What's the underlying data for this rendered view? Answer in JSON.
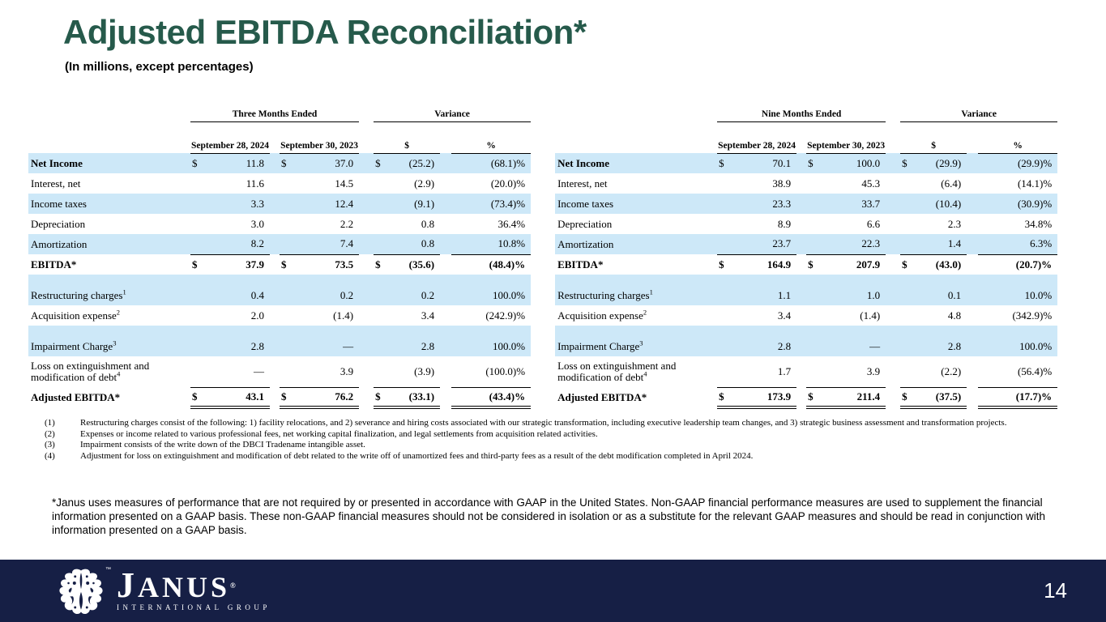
{
  "slide": {
    "title": "Adjusted EBITDA Reconciliation*",
    "subtitle": "(In millions, except percentages)",
    "page_number": "14"
  },
  "colors": {
    "title_green": "#265a4b",
    "row_highlight_blue": "#cde8f8",
    "footer_navy": "#161f45"
  },
  "tables": [
    {
      "period_header": "Three Months Ended",
      "variance_header": "Variance",
      "col_date_1": "September 28, 2024",
      "col_date_2": "September 30, 2023",
      "col_dollar": "$",
      "col_percent": "%",
      "rows": [
        {
          "label": "Net Income",
          "d1": "$",
          "v1": "11.8",
          "d2": "$",
          "v2": "37.0",
          "d3": "$",
          "v3": "(25.2)",
          "v4": "(68.1)%",
          "cls": "blue lblbold"
        },
        {
          "label": "Interest, net",
          "v1": "11.6",
          "v2": "14.5",
          "v3": "(2.9)",
          "v4": "(20.0)%",
          "cls": ""
        },
        {
          "label": "Income taxes",
          "v1": "3.3",
          "v2": "12.4",
          "v3": "(9.1)",
          "v4": "(73.4)%",
          "cls": "blue"
        },
        {
          "label": "Depreciation",
          "v1": "3.0",
          "v2": "2.2",
          "v3": "0.8",
          "v4": "36.4%",
          "cls": ""
        },
        {
          "label": "Amortization",
          "v1": "8.2",
          "v2": "7.4",
          "v3": "0.8",
          "v4": "10.8%",
          "cls": "blue rule"
        },
        {
          "label": "EBITDA*",
          "d1": "$",
          "v1": "37.9",
          "d2": "$",
          "v2": "73.5",
          "d3": "$",
          "v3": "(35.6)",
          "v4": "(48.4)%",
          "cls": "bold"
        },
        {
          "spacer": true,
          "cls": "sp blue"
        },
        {
          "label": "Restructuring charges",
          "sup": "1",
          "v1": "0.4",
          "v2": "0.2",
          "v3": "0.2",
          "v4": "100.0%",
          "cls": "blue"
        },
        {
          "label": "Acquisition expense",
          "sup": "2",
          "v1": "2.0",
          "v2": "(1.4)",
          "v3": "3.4",
          "v4": "(242.9)%",
          "cls": ""
        },
        {
          "spacer": true,
          "cls": "sp blue"
        },
        {
          "label": "Impairment Charge",
          "sup": "3",
          "v1": "2.8",
          "v2": "—",
          "v3": "2.8",
          "v4": "100.0%",
          "cls": "blue"
        },
        {
          "label": "Loss on extinguishment and modification of debt",
          "sup": "4",
          "v1": "—",
          "v2": "3.9",
          "v3": "(3.9)",
          "v4": "(100.0)%",
          "cls": "tall rule"
        },
        {
          "label": "Adjusted EBITDA*",
          "d1": "$",
          "v1": "43.1",
          "d2": "$",
          "v2": "76.2",
          "d3": "$",
          "v3": "(33.1)",
          "v4": "(43.4)%",
          "cls": "bold dbl"
        }
      ]
    },
    {
      "period_header": "Nine Months Ended",
      "variance_header": "Variance",
      "col_date_1": "September 28, 2024",
      "col_date_2": "September 30, 2023",
      "col_dollar": "$",
      "col_percent": "%",
      "rows": [
        {
          "label": "Net Income",
          "d1": "$",
          "v1": "70.1",
          "d2": "$",
          "v2": "100.0",
          "d3": "$",
          "v3": "(29.9)",
          "v4": "(29.9)%",
          "cls": "blue lblbold"
        },
        {
          "label": "Interest, net",
          "v1": "38.9",
          "v2": "45.3",
          "v3": "(6.4)",
          "v4": "(14.1)%",
          "cls": ""
        },
        {
          "label": "Income taxes",
          "v1": "23.3",
          "v2": "33.7",
          "v3": "(10.4)",
          "v4": "(30.9)%",
          "cls": "blue"
        },
        {
          "label": "Depreciation",
          "v1": "8.9",
          "v2": "6.6",
          "v3": "2.3",
          "v4": "34.8%",
          "cls": ""
        },
        {
          "label": "Amortization",
          "v1": "23.7",
          "v2": "22.3",
          "v3": "1.4",
          "v4": "6.3%",
          "cls": "blue rule"
        },
        {
          "label": "EBITDA*",
          "d1": "$",
          "v1": "164.9",
          "d2": "$",
          "v2": "207.9",
          "d3": "$",
          "v3": "(43.0)",
          "v4": "(20.7)%",
          "cls": "bold"
        },
        {
          "spacer": true,
          "cls": "sp blue"
        },
        {
          "label": "Restructuring charges",
          "sup": "1",
          "v1": "1.1",
          "v2": "1.0",
          "v3": "0.1",
          "v4": "10.0%",
          "cls": "blue"
        },
        {
          "label": "Acquisition expense",
          "sup": "2",
          "v1": "3.4",
          "v2": "(1.4)",
          "v3": "4.8",
          "v4": "(342.9)%",
          "cls": ""
        },
        {
          "spacer": true,
          "cls": "sp blue"
        },
        {
          "label": "Impairment Charge",
          "sup": "3",
          "v1": "2.8",
          "v2": "—",
          "v3": "2.8",
          "v4": "100.0%",
          "cls": "blue"
        },
        {
          "label": "Loss on extinguishment and modification of debt",
          "sup": "4",
          "v1": "1.7",
          "v2": "3.9",
          "v3": "(2.2)",
          "v4": "(56.4)%",
          "cls": "tall rule"
        },
        {
          "label": "Adjusted EBITDA*",
          "d1": "$",
          "v1": "173.9",
          "d2": "$",
          "v2": "211.4",
          "d3": "$",
          "v3": "(37.5)",
          "v4": "(17.7)%",
          "cls": "bold dbl"
        }
      ]
    }
  ],
  "footnotes": [
    {
      "num": "(1)",
      "text": "Restructuring charges consist of the following: 1) facility relocations, and 2) severance and hiring costs associated with our strategic transformation, including executive leadership team changes, and 3) strategic business assessment and transformation projects."
    },
    {
      "num": "(2)",
      "text": "Expenses or income related to various professional fees, net working capital finalization, and legal settlements from acquisition related activities."
    },
    {
      "num": "(3)",
      "text": "Impairment consists of the write down of the DBCI Tradename intangible asset."
    },
    {
      "num": "(4)",
      "text": "Adjustment for loss on extinguishment and modification of debt related to the write off of unamortized fees and third-party fees as a result of the debt modification completed in April 2024."
    }
  ],
  "disclaimer": "*Janus uses measures of performance that are not required by or presented in accordance with GAAP in the United States. Non-GAAP financial performance measures are used to supplement the financial information presented on a GAAP basis. These non-GAAP financial measures should not be considered in isolation or as a substitute for the relevant GAAP measures and should be read in conjunction with information presented on a GAAP basis.",
  "logo": {
    "name": "JANUS",
    "reg": "®",
    "tm": "™",
    "subtext": "INTERNATIONAL GROUP"
  }
}
